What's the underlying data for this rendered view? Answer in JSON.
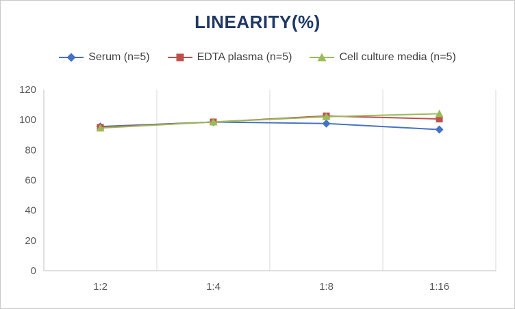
{
  "chart_data": {
    "type": "line",
    "title": "LINEARITY(%)",
    "title_color": "#1F3864",
    "categories": [
      "1:2",
      "1:4",
      "1:8",
      "1:16"
    ],
    "xlabel": "",
    "ylabel": "",
    "ylim": [
      0,
      120
    ],
    "y_ticks": [
      0,
      20,
      40,
      60,
      80,
      100,
      120
    ],
    "grid": "vertical-only",
    "legend_position": "top",
    "series": [
      {
        "name": "Serum (n=5)",
        "marker": "diamond",
        "color": "#4472C4",
        "values": [
          95.5,
          98.5,
          97.5,
          93.5
        ]
      },
      {
        "name": "EDTA plasma (n=5)",
        "marker": "square",
        "color": "#C0504D",
        "values": [
          95.0,
          98.5,
          102.5,
          100.5
        ]
      },
      {
        "name": "Cell culture media (n=5)",
        "marker": "triangle",
        "color": "#9BBB59",
        "values": [
          94.5,
          98.5,
          102.0,
          104.0
        ]
      }
    ]
  }
}
